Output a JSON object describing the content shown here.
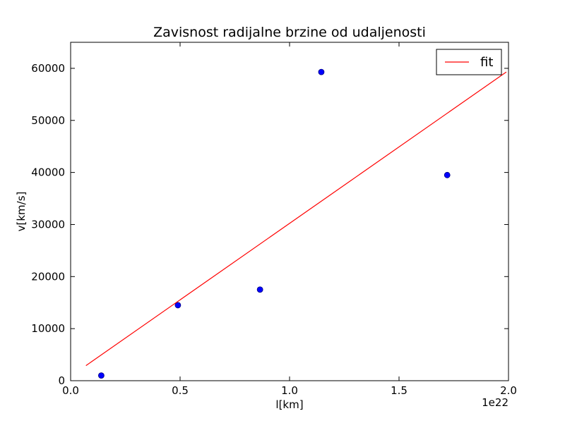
{
  "chart_data": {
    "type": "scatter",
    "title": "Zavisnost radijalne brzine od udaljenosti",
    "xlabel": "l[km]",
    "ylabel": "v[km/s]",
    "x_offset_label": "1e22",
    "xlim": [
      0.0,
      2.0
    ],
    "ylim": [
      0,
      65000
    ],
    "x_ticks": [
      0.0,
      0.5,
      1.0,
      1.5,
      2.0
    ],
    "x_tick_labels": [
      "0.0",
      "0.5",
      "1.0",
      "1.5",
      "2.0"
    ],
    "y_ticks": [
      0,
      10000,
      20000,
      30000,
      40000,
      50000,
      60000
    ],
    "y_tick_labels": [
      "0",
      "10000",
      "20000",
      "30000",
      "40000",
      "50000",
      "60000"
    ],
    "grid": false,
    "legend_position": "top-right",
    "series": [
      {
        "kind": "scatter",
        "color": "#0000ff",
        "points": [
          {
            "x": 0.14,
            "y": 1000
          },
          {
            "x": 0.49,
            "y": 14500
          },
          {
            "x": 0.865,
            "y": 17500
          },
          {
            "x": 1.145,
            "y": 59300
          },
          {
            "x": 1.72,
            "y": 39500
          }
        ]
      },
      {
        "name": "fit",
        "kind": "line",
        "color": "#ff0000",
        "points": [
          {
            "x": 0.07,
            "y": 2900
          },
          {
            "x": 1.99,
            "y": 59300
          }
        ]
      }
    ]
  }
}
